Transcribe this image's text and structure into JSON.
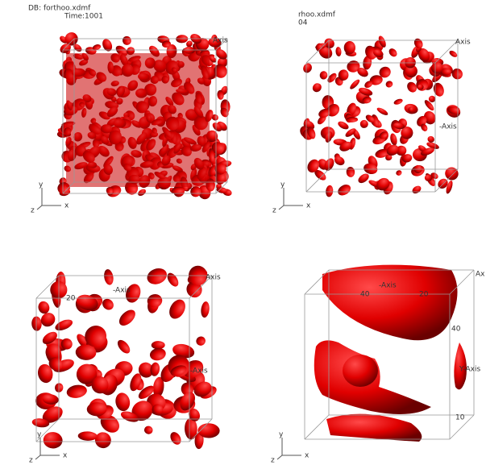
{
  "panels": [
    {
      "header": [
        "DB: forthoo.xdmf",
        "Time:1001"
      ],
      "labels": [
        "Axis"
      ],
      "triad": [
        "y",
        "z",
        "x"
      ]
    },
    {
      "header": [
        "rhoo.xdmf",
        "04"
      ],
      "labels": [
        "Axis",
        "-Axis"
      ],
      "triad": [
        "y",
        "z",
        "x"
      ]
    },
    {
      "header": [],
      "labels": [
        "Axis",
        "-Axis",
        "20",
        "-Axis"
      ],
      "triad": [
        "y",
        "z",
        "x"
      ]
    },
    {
      "header": [],
      "labels": [
        "Ax",
        "-Axis",
        "40",
        "Y-Axis",
        "10",
        "40",
        "20"
      ],
      "triad": [
        "y",
        "z",
        "x"
      ]
    }
  ]
}
